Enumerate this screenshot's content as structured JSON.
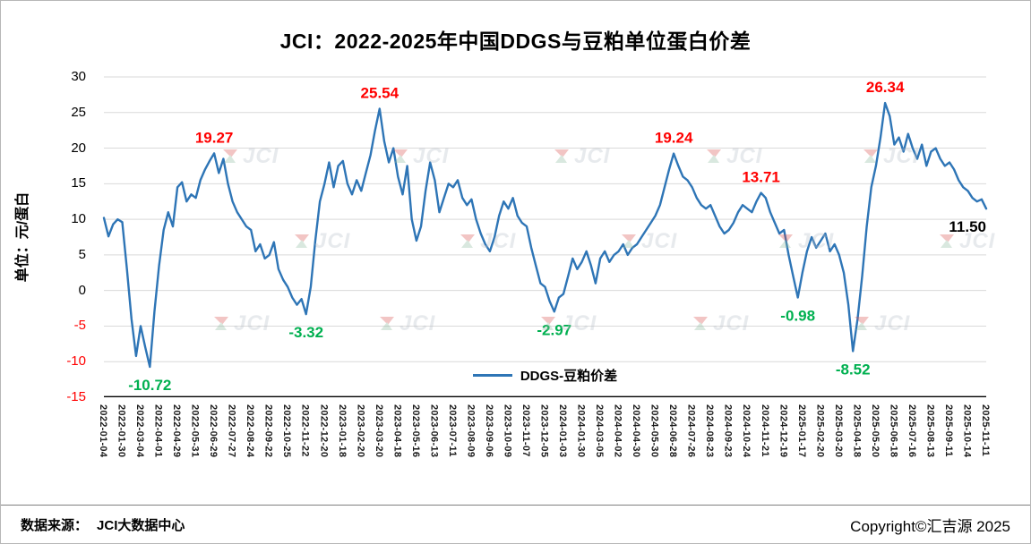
{
  "footer": {
    "source_label": "数据来源：",
    "source_value": "JCI大数据中心",
    "copyright": "Copyright©汇吉源 2025"
  },
  "watermark": {
    "text": "JCI"
  },
  "colors": {
    "line": "#2e75b6",
    "peak_label": "#ff0000",
    "trough_label": "#00b050",
    "final_label": "#000000",
    "negative_tick": "#ff0000",
    "grid": "#d9d9d9",
    "axis": "#000000"
  },
  "chart_data": {
    "type": "line",
    "title": "JCI：2022-2025年中国DDGS与豆粕单位蛋白价差",
    "ylabel": "单位：元/蛋白",
    "xlabel": "",
    "ylim": [
      -15,
      30
    ],
    "grid": true,
    "legend_position": "bottom-center",
    "y_ticks": [
      30,
      25,
      20,
      15,
      10,
      5,
      0,
      -5,
      -10,
      -15
    ],
    "x_ticks": [
      "2022-01-04",
      "2022-01-30",
      "2022-03-04",
      "2022-04-01",
      "2022-04-29",
      "2022-05-31",
      "2022-06-29",
      "2022-07-27",
      "2022-08-24",
      "2022-09-22",
      "2022-10-25",
      "2022-11-22",
      "2022-12-20",
      "2023-01-18",
      "2023-02-20",
      "2023-03-20",
      "2023-04-18",
      "2023-05-16",
      "2023-06-13",
      "2023-07-11",
      "2023-08-09",
      "2023-09-06",
      "2023-10-09",
      "2023-11-07",
      "2023-12-05",
      "2024-01-03",
      "2024-01-30",
      "2024-03-05",
      "2024-04-02",
      "2024-04-30",
      "2024-05-30",
      "2024-06-28",
      "2024-07-26",
      "2024-08-23",
      "2024-09-23",
      "2024-10-24",
      "2024-11-21",
      "2024-12-19",
      "2025-01-17",
      "2025-02-20",
      "2025-03-20",
      "2025-04-18",
      "2025-05-20",
      "2025-06-18",
      "2025-07-16",
      "2025-08-13",
      "2025-09-11",
      "2025-10-14",
      "2025-11-11"
    ],
    "points_per_tick": 4,
    "series": [
      {
        "name": "DDGS-豆粕价差",
        "values": [
          10.2,
          7.6,
          9.3,
          10.0,
          9.6,
          3.0,
          -4.0,
          -9.2,
          -5.0,
          -8.0,
          -10.72,
          -3.0,
          3.5,
          8.5,
          11.0,
          9.0,
          14.5,
          15.2,
          12.5,
          13.5,
          13.0,
          15.5,
          17.0,
          18.2,
          19.27,
          16.5,
          18.5,
          15.0,
          12.5,
          11.0,
          10.0,
          9.0,
          8.5,
          5.5,
          6.5,
          4.5,
          5.0,
          6.8,
          3.0,
          1.5,
          0.5,
          -1.0,
          -2.0,
          -1.2,
          -3.32,
          0.5,
          7.0,
          12.5,
          15.0,
          18.0,
          14.5,
          17.5,
          18.2,
          15.0,
          13.5,
          15.5,
          14.0,
          16.5,
          19.0,
          22.5,
          25.54,
          21.0,
          18.0,
          20.0,
          16.0,
          13.5,
          17.5,
          10.0,
          7.0,
          9.0,
          14.0,
          18.0,
          15.5,
          11.0,
          13.0,
          15.0,
          14.5,
          15.5,
          13.0,
          12.0,
          12.8,
          10.0,
          8.0,
          6.5,
          5.5,
          7.5,
          10.5,
          12.5,
          11.5,
          13.0,
          10.5,
          9.5,
          9.0,
          6.0,
          3.5,
          1.0,
          0.5,
          -1.5,
          -2.97,
          -1.0,
          -0.5,
          2.0,
          4.5,
          3.0,
          4.0,
          5.5,
          3.5,
          1.0,
          4.5,
          5.5,
          4.0,
          5.0,
          5.5,
          6.5,
          5.0,
          6.0,
          6.5,
          7.5,
          8.5,
          9.5,
          10.5,
          12.0,
          14.5,
          17.0,
          19.24,
          17.5,
          16.0,
          15.5,
          14.5,
          13.0,
          12.0,
          11.5,
          12.0,
          10.5,
          9.0,
          8.0,
          8.5,
          9.5,
          11.0,
          12.0,
          11.5,
          11.0,
          12.5,
          13.71,
          13.0,
          11.0,
          9.5,
          8.0,
          8.5,
          5.0,
          2.0,
          -0.98,
          2.5,
          5.5,
          7.5,
          6.0,
          7.0,
          8.0,
          5.5,
          6.5,
          5.0,
          2.5,
          -2.0,
          -8.52,
          -4.0,
          2.0,
          9.0,
          14.5,
          17.5,
          21.5,
          26.34,
          24.5,
          20.5,
          21.5,
          19.5,
          22.0,
          20.0,
          18.5,
          20.5,
          17.5,
          19.5,
          20.0,
          18.5,
          17.5,
          18.0,
          17.0,
          15.5,
          14.5,
          14.0,
          13.0,
          12.5,
          12.8,
          11.5
        ]
      }
    ],
    "annotations": [
      {
        "text": "19.27",
        "index": 24,
        "role": "peak",
        "placement": "above"
      },
      {
        "text": "25.54",
        "index": 60,
        "role": "peak",
        "placement": "above"
      },
      {
        "text": "19.24",
        "index": 124,
        "role": "peak",
        "placement": "above"
      },
      {
        "text": "13.71",
        "index": 143,
        "role": "peak",
        "placement": "above"
      },
      {
        "text": "26.34",
        "index": 170,
        "role": "peak",
        "placement": "above"
      },
      {
        "text": "11.50",
        "index": 192,
        "role": "final",
        "placement": "below",
        "anchor": "end"
      },
      {
        "text": "-10.72",
        "index": 10,
        "role": "trough",
        "placement": "below"
      },
      {
        "text": "-3.32",
        "index": 44,
        "role": "trough",
        "placement": "below"
      },
      {
        "text": "-2.97",
        "index": 98,
        "role": "trough",
        "placement": "below"
      },
      {
        "text": "-0.98",
        "index": 151,
        "role": "trough",
        "placement": "below"
      },
      {
        "text": "-8.52",
        "index": 163,
        "role": "trough",
        "placement": "below"
      }
    ]
  }
}
